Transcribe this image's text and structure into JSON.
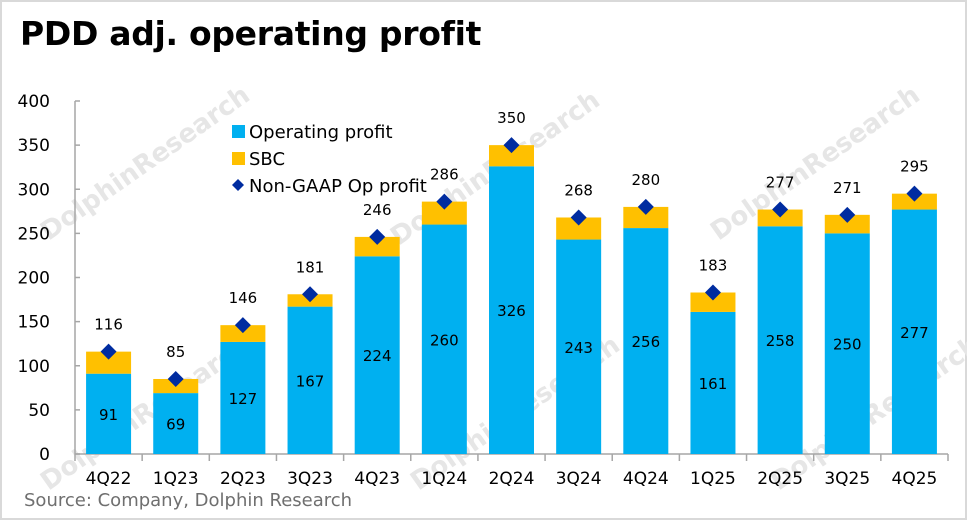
{
  "chart_data": {
    "type": "bar",
    "stacked": true,
    "title": "PDD adj. operating profit",
    "source": "Source: Company, Dolphin Research",
    "xlabel": "",
    "ylabel": "",
    "ylim": [
      0,
      400
    ],
    "yticks": [
      0,
      50,
      100,
      150,
      200,
      250,
      300,
      350,
      400
    ],
    "grid": false,
    "legend_position": "top-left",
    "categories": [
      "4Q22",
      "1Q23",
      "2Q23",
      "3Q23",
      "4Q23",
      "1Q24",
      "2Q24",
      "3Q24",
      "4Q24",
      "1Q25",
      "2Q25",
      "3Q25",
      "4Q25"
    ],
    "series": [
      {
        "name": "Operating profit",
        "kind": "bar",
        "color": "#00B0F0",
        "values": [
          91,
          69,
          127,
          167,
          224,
          260,
          326,
          243,
          256,
          161,
          258,
          250,
          277
        ]
      },
      {
        "name": "SBC",
        "kind": "bar",
        "color": "#FFC000",
        "values": [
          25,
          16,
          19,
          14,
          22,
          26,
          24,
          25,
          24,
          22,
          19,
          21,
          18
        ]
      },
      {
        "name": "Non-GAAP Op profit",
        "kind": "marker",
        "marker": "diamond",
        "color": "#002CA0",
        "values": [
          116,
          85,
          146,
          181,
          246,
          286,
          350,
          268,
          280,
          183,
          277,
          271,
          295
        ]
      }
    ],
    "watermark": "DolphinResearch"
  }
}
